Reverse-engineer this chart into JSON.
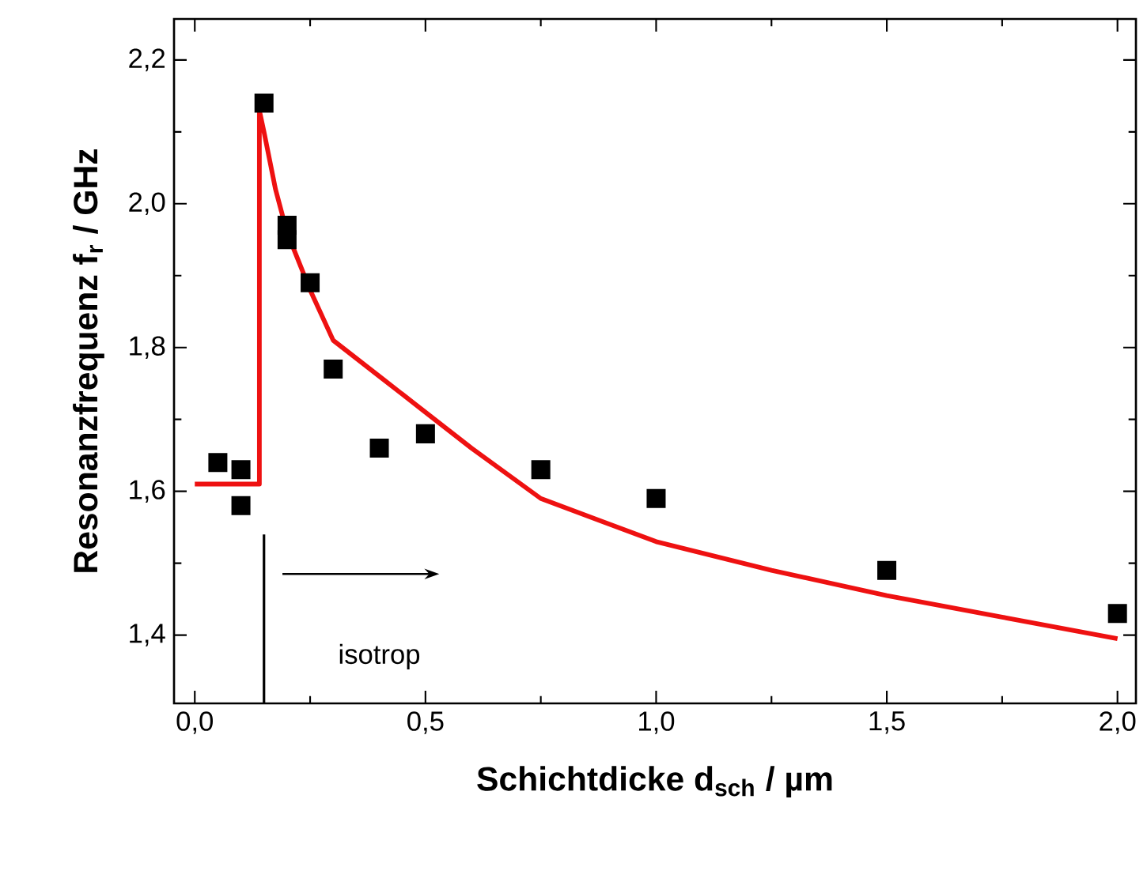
{
  "chart_data": {
    "type": "scatter",
    "xlabel": "Schichtdicke d$_{sch}$ / µm",
    "ylabel": "Resonanzfrequenz f$_{r}$ / GHz",
    "xlim": [
      -0.045,
      2.04
    ],
    "ylim": [
      1.305,
      2.257
    ],
    "xticks": [
      {
        "value": 0,
        "label": "0,0"
      },
      {
        "value": 0.5,
        "label": "0,5"
      },
      {
        "value": 1,
        "label": "1,0"
      },
      {
        "value": 1.5,
        "label": "1,5"
      },
      {
        "value": 2,
        "label": "2,0"
      }
    ],
    "yticks": [
      {
        "value": 1.4,
        "label": "1,4"
      },
      {
        "value": 1.6,
        "label": "1,6"
      },
      {
        "value": 1.8,
        "label": "1,8"
      },
      {
        "value": 2.0,
        "label": "2,0"
      },
      {
        "value": 2.2,
        "label": "2,2"
      }
    ],
    "grid": false,
    "series": [
      {
        "type": "line",
        "color": "#ee1111",
        "marker": "none",
        "x": [
          0,
          0.14,
          0.14,
          0.15,
          0.175,
          0.2,
          0.25,
          0.3,
          0.4,
          0.5,
          0.6,
          0.75,
          1.0,
          1.25,
          1.5,
          1.75,
          2.0
        ],
        "values": [
          1.61,
          1.61,
          2.13,
          2.1,
          2.02,
          1.96,
          1.88,
          1.81,
          1.76,
          1.71,
          1.66,
          1.59,
          1.53,
          1.49,
          1.455,
          1.425,
          1.395
        ]
      },
      {
        "type": "scatter",
        "color": "#000000",
        "marker": "square",
        "x": [
          0.05,
          0.1,
          0.1,
          0.15,
          0.2,
          0.2,
          0.25,
          0.3,
          0.4,
          0.5,
          0.75,
          1.0,
          1.5,
          2.0
        ],
        "values": [
          1.64,
          1.63,
          1.58,
          2.14,
          1.97,
          1.95,
          1.89,
          1.77,
          1.66,
          1.68,
          1.63,
          1.59,
          1.49,
          1.43
        ]
      }
    ],
    "ref_lines": [
      {
        "axis": "x",
        "value": 0.15,
        "color": "#000000"
      }
    ],
    "annotations": [
      "isotrop"
    ]
  }
}
